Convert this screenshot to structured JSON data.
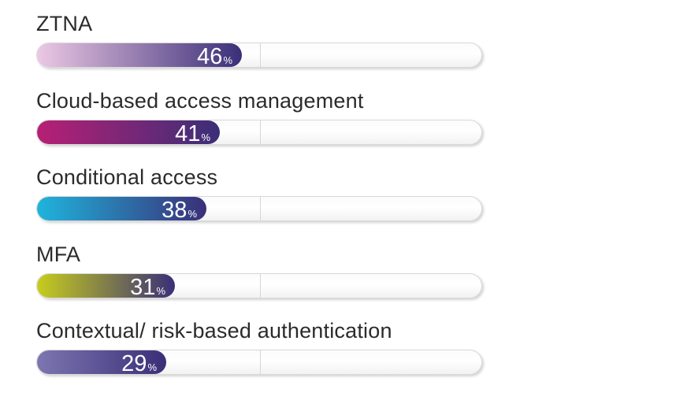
{
  "chart_data": {
    "type": "bar",
    "orientation": "horizontal",
    "categories": [
      "ZTNA",
      "Cloud-based access management",
      "Conditional access",
      "MFA",
      "Contextual/ risk-based authentication"
    ],
    "values": [
      46,
      41,
      38,
      31,
      29
    ],
    "value_suffix": "%",
    "xlim": [
      0,
      100
    ],
    "grid": true,
    "bar_colors": [
      {
        "start": "#ecc8e4",
        "end": "#3a2f78"
      },
      {
        "start": "#b81f75",
        "end": "#3a2f78"
      },
      {
        "start": "#1fb4dc",
        "end": "#3a2f78"
      },
      {
        "start": "#c7cd1d",
        "end": "#3a2f78"
      },
      {
        "start": "#7d76b0",
        "end": "#3a2f78"
      }
    ],
    "title": "",
    "xlabel": "",
    "ylabel": ""
  }
}
